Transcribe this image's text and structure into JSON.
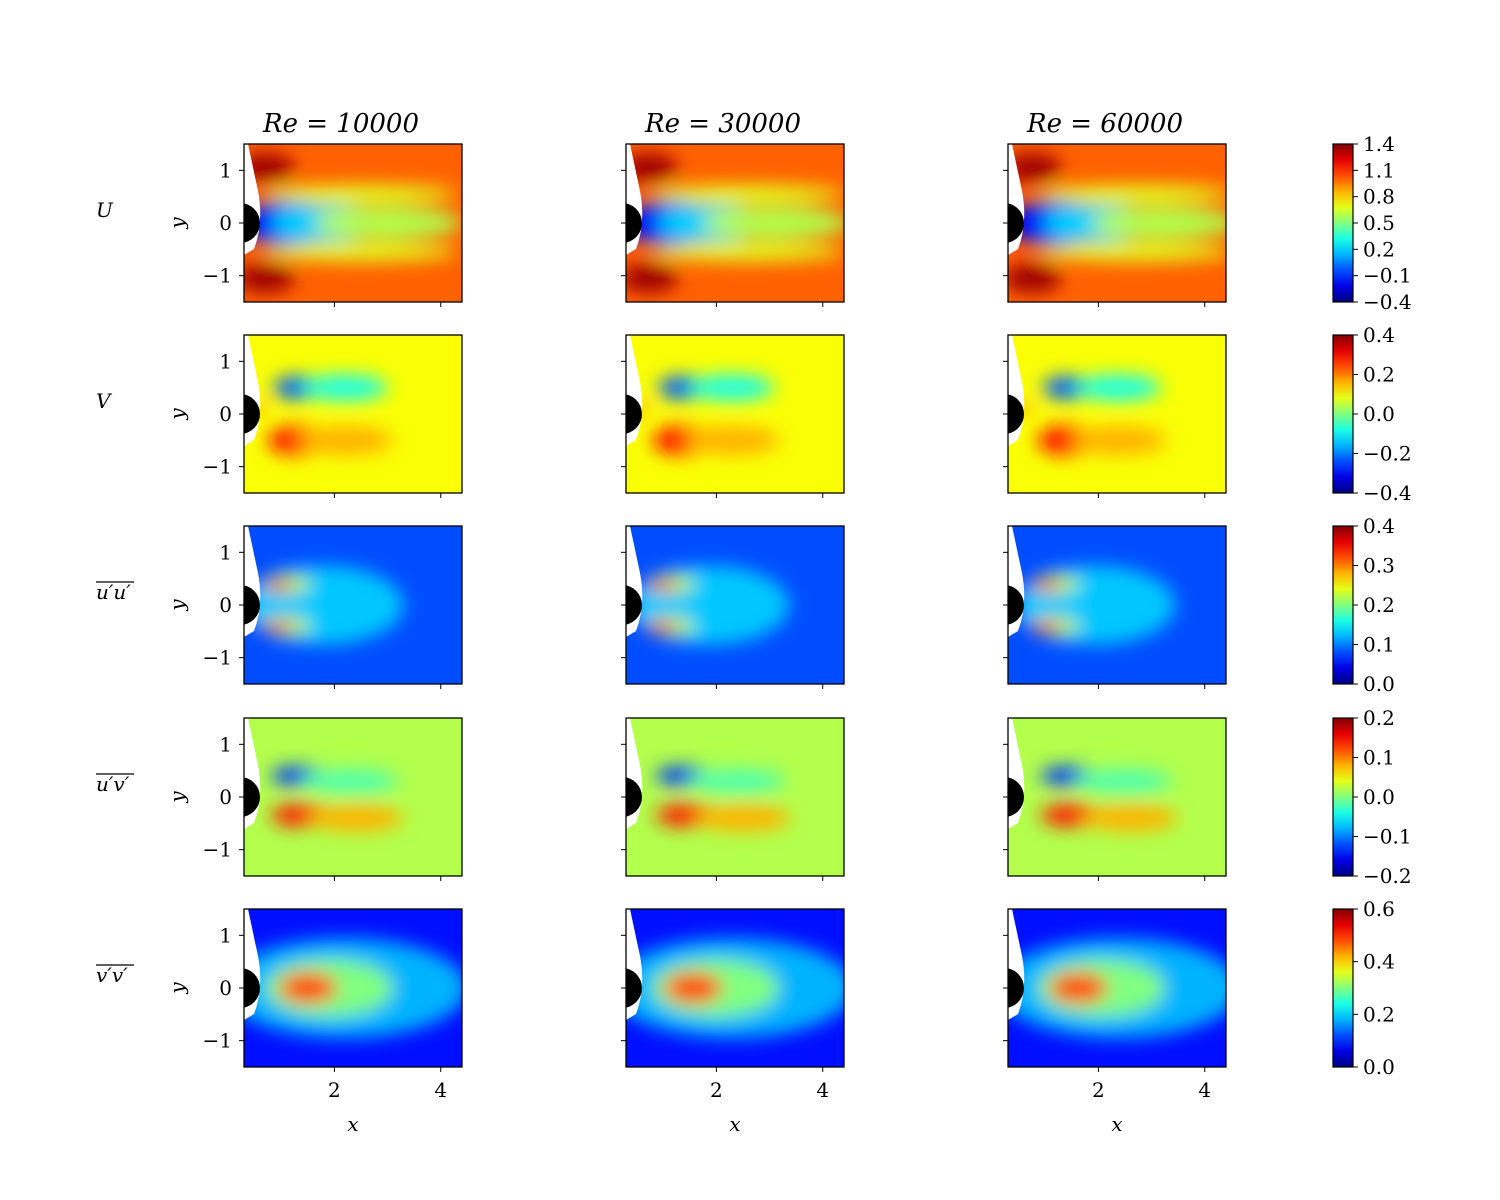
{
  "chart_data": {
    "type": "heatmap",
    "title": "",
    "xlabel": "x",
    "ylabel": "y",
    "xlim": [
      0.3,
      4.4
    ],
    "ylim": [
      -1.5,
      1.5
    ],
    "x_ticks": [
      2,
      4
    ],
    "x_tick_labels": [
      "2",
      "4"
    ],
    "y_ticks": [
      1,
      0,
      -1
    ],
    "y_tick_labels": [
      "1",
      "0",
      "−1"
    ],
    "columns": [
      {
        "label": "Re = 10000",
        "re": 10000
      },
      {
        "label": "Re = 30000",
        "re": 30000
      },
      {
        "label": "Re = 60000",
        "re": 60000
      }
    ],
    "rows": [
      {
        "key": "U",
        "label": "U",
        "overline": false,
        "colorbar": {
          "min": -0.4,
          "max": 1.4,
          "ticks": [
            "1.4",
            "1.1",
            "0.8",
            "0.5",
            "0.2",
            "−0.1",
            "−0.4"
          ]
        }
      },
      {
        "key": "V",
        "label": "V",
        "overline": false,
        "colorbar": {
          "min": -0.4,
          "max": 0.4,
          "ticks": [
            "0.4",
            "0.2",
            "0.0",
            "−0.2",
            "−0.4"
          ]
        }
      },
      {
        "key": "uu",
        "label": "u′u′",
        "overline": true,
        "colorbar": {
          "min": 0.0,
          "max": 0.4,
          "ticks": [
            "0.4",
            "0.3",
            "0.2",
            "0.1",
            "0.0"
          ]
        }
      },
      {
        "key": "uv",
        "label": "u′v′",
        "overline": true,
        "colorbar": {
          "min": -0.2,
          "max": 0.2,
          "ticks": [
            "0.2",
            "0.1",
            "0.0",
            "−0.1",
            "−0.2"
          ]
        }
      },
      {
        "key": "vv",
        "label": "v′v′",
        "overline": true,
        "colorbar": {
          "min": 0.0,
          "max": 0.6,
          "ticks": [
            "0.6",
            "0.4",
            "0.2",
            "0.0"
          ]
        }
      }
    ],
    "colormap": "jet"
  }
}
